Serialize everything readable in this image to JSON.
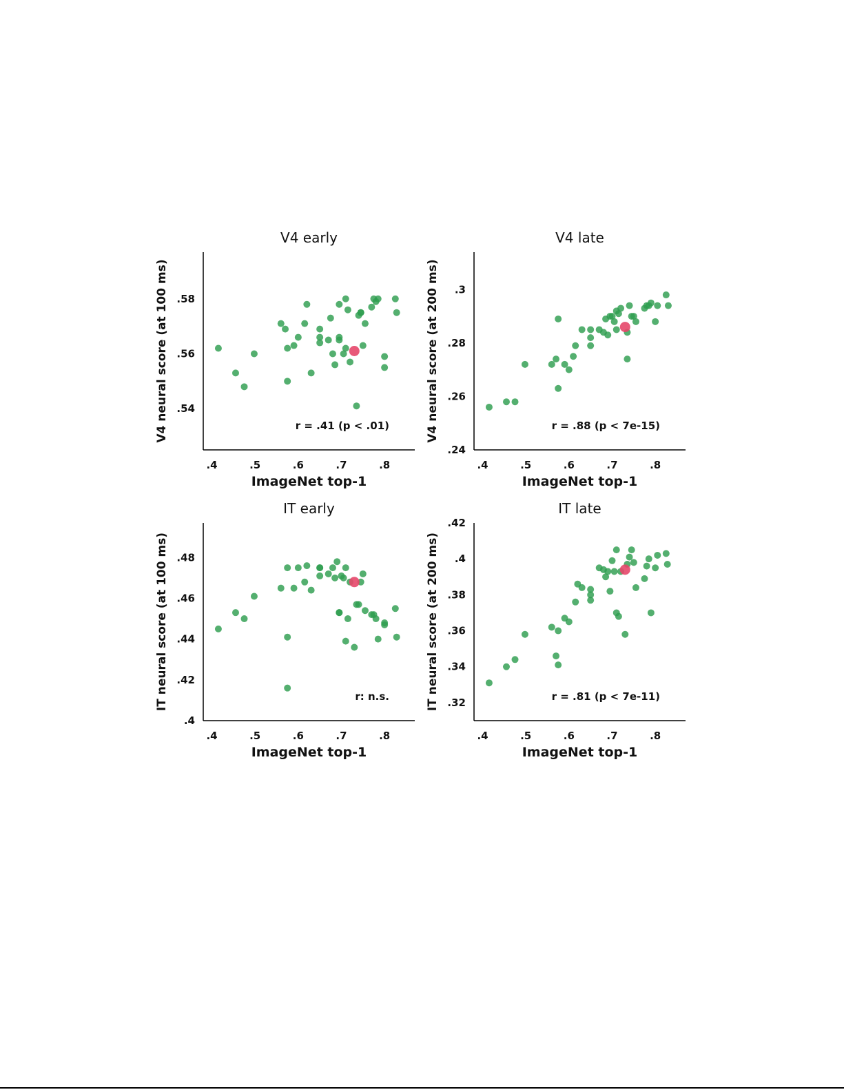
{
  "colors": {
    "green": "#2e9e4f",
    "highlight": "#e5476a"
  },
  "chart_data": [
    {
      "type": "scatter",
      "title": "V4 early",
      "xlabel": "ImageNet top-1",
      "ylabel": "V4 neural score (at 100 ms)",
      "xlim": [
        0.38,
        0.87
      ],
      "ylim": [
        0.525,
        0.597
      ],
      "xticks": [
        0.4,
        0.5,
        0.6,
        0.7,
        0.8
      ],
      "xtick_labels": [
        ".4",
        ".5",
        ".6",
        ".7",
        ".8"
      ],
      "yticks": [
        0.54,
        0.56,
        0.58
      ],
      "ytick_labels": [
        ".54",
        ".56",
        ".58"
      ],
      "annotation": "r = .41 (p < .01)",
      "grid": false,
      "points": [
        [
          0.415,
          0.562
        ],
        [
          0.455,
          0.553
        ],
        [
          0.475,
          0.548
        ],
        [
          0.498,
          0.56
        ],
        [
          0.56,
          0.571
        ],
        [
          0.57,
          0.569
        ],
        [
          0.575,
          0.562
        ],
        [
          0.575,
          0.55
        ],
        [
          0.59,
          0.563
        ],
        [
          0.6,
          0.566
        ],
        [
          0.615,
          0.571
        ],
        [
          0.62,
          0.578
        ],
        [
          0.63,
          0.553
        ],
        [
          0.65,
          0.569
        ],
        [
          0.65,
          0.566
        ],
        [
          0.65,
          0.564
        ],
        [
          0.67,
          0.565
        ],
        [
          0.675,
          0.573
        ],
        [
          0.68,
          0.56
        ],
        [
          0.685,
          0.556
        ],
        [
          0.695,
          0.578
        ],
        [
          0.695,
          0.566
        ],
        [
          0.695,
          0.565
        ],
        [
          0.705,
          0.56
        ],
        [
          0.71,
          0.562
        ],
        [
          0.71,
          0.58
        ],
        [
          0.715,
          0.576
        ],
        [
          0.72,
          0.557
        ],
        [
          0.735,
          0.541
        ],
        [
          0.74,
          0.574
        ],
        [
          0.745,
          0.575
        ],
        [
          0.745,
          0.575
        ],
        [
          0.75,
          0.563
        ],
        [
          0.755,
          0.571
        ],
        [
          0.77,
          0.577
        ],
        [
          0.775,
          0.58
        ],
        [
          0.78,
          0.579
        ],
        [
          0.785,
          0.58
        ],
        [
          0.8,
          0.559
        ],
        [
          0.8,
          0.555
        ],
        [
          0.825,
          0.58
        ],
        [
          0.828,
          0.575
        ]
      ],
      "highlight": [
        0.73,
        0.561
      ]
    },
    {
      "type": "scatter",
      "title": "V4 late",
      "xlabel": "ImageNet top-1",
      "ylabel": "V4 neural score (at 200 ms)",
      "xlim": [
        0.38,
        0.87
      ],
      "ylim": [
        0.24,
        0.314
      ],
      "xticks": [
        0.4,
        0.5,
        0.6,
        0.7,
        0.8
      ],
      "xtick_labels": [
        ".4",
        ".5",
        ".6",
        ".7",
        ".8"
      ],
      "yticks": [
        0.24,
        0.26,
        0.28,
        0.3
      ],
      "ytick_labels": [
        ".24",
        ".26",
        ".28",
        ".3"
      ],
      "annotation": "r = .88 (p < 7e-15)",
      "grid": false,
      "points": [
        [
          0.415,
          0.256
        ],
        [
          0.455,
          0.258
        ],
        [
          0.475,
          0.258
        ],
        [
          0.498,
          0.272
        ],
        [
          0.56,
          0.272
        ],
        [
          0.57,
          0.274
        ],
        [
          0.575,
          0.263
        ],
        [
          0.575,
          0.289
        ],
        [
          0.59,
          0.272
        ],
        [
          0.6,
          0.27
        ],
        [
          0.61,
          0.275
        ],
        [
          0.615,
          0.279
        ],
        [
          0.63,
          0.285
        ],
        [
          0.65,
          0.285
        ],
        [
          0.65,
          0.282
        ],
        [
          0.65,
          0.279
        ],
        [
          0.67,
          0.285
        ],
        [
          0.68,
          0.284
        ],
        [
          0.685,
          0.289
        ],
        [
          0.69,
          0.283
        ],
        [
          0.695,
          0.29
        ],
        [
          0.7,
          0.29
        ],
        [
          0.705,
          0.288
        ],
        [
          0.71,
          0.292
        ],
        [
          0.71,
          0.285
        ],
        [
          0.715,
          0.291
        ],
        [
          0.72,
          0.293
        ],
        [
          0.735,
          0.284
        ],
        [
          0.735,
          0.274
        ],
        [
          0.74,
          0.294
        ],
        [
          0.745,
          0.29
        ],
        [
          0.75,
          0.29
        ],
        [
          0.755,
          0.288
        ],
        [
          0.775,
          0.293
        ],
        [
          0.78,
          0.294
        ],
        [
          0.785,
          0.294
        ],
        [
          0.79,
          0.295
        ],
        [
          0.8,
          0.288
        ],
        [
          0.805,
          0.294
        ],
        [
          0.825,
          0.298
        ],
        [
          0.83,
          0.294
        ]
      ],
      "highlight": [
        0.73,
        0.286
      ]
    },
    {
      "type": "scatter",
      "title": "IT early",
      "xlabel": "ImageNet top-1",
      "ylabel": "IT neural score (at 100 ms)",
      "xlim": [
        0.38,
        0.87
      ],
      "ylim": [
        0.4,
        0.497
      ],
      "xticks": [
        0.4,
        0.5,
        0.6,
        0.7,
        0.8
      ],
      "xtick_labels": [
        ".4",
        ".5",
        ".6",
        ".7",
        ".8"
      ],
      "yticks": [
        0.4,
        0.42,
        0.44,
        0.46,
        0.48
      ],
      "ytick_labels": [
        ".4",
        ".42",
        ".44",
        ".46",
        ".48"
      ],
      "annotation": "r: n.s.",
      "grid": false,
      "points": [
        [
          0.415,
          0.445
        ],
        [
          0.455,
          0.453
        ],
        [
          0.475,
          0.45
        ],
        [
          0.498,
          0.461
        ],
        [
          0.56,
          0.465
        ],
        [
          0.575,
          0.475
        ],
        [
          0.575,
          0.441
        ],
        [
          0.575,
          0.416
        ],
        [
          0.59,
          0.465
        ],
        [
          0.6,
          0.475
        ],
        [
          0.615,
          0.468
        ],
        [
          0.62,
          0.476
        ],
        [
          0.63,
          0.464
        ],
        [
          0.65,
          0.475
        ],
        [
          0.65,
          0.475
        ],
        [
          0.65,
          0.471
        ],
        [
          0.67,
          0.472
        ],
        [
          0.68,
          0.475
        ],
        [
          0.685,
          0.47
        ],
        [
          0.69,
          0.478
        ],
        [
          0.695,
          0.453
        ],
        [
          0.695,
          0.453
        ],
        [
          0.7,
          0.471
        ],
        [
          0.705,
          0.47
        ],
        [
          0.71,
          0.475
        ],
        [
          0.71,
          0.439
        ],
        [
          0.715,
          0.45
        ],
        [
          0.72,
          0.468
        ],
        [
          0.73,
          0.436
        ],
        [
          0.735,
          0.457
        ],
        [
          0.74,
          0.457
        ],
        [
          0.745,
          0.468
        ],
        [
          0.75,
          0.472
        ],
        [
          0.755,
          0.454
        ],
        [
          0.77,
          0.452
        ],
        [
          0.775,
          0.452
        ],
        [
          0.78,
          0.45
        ],
        [
          0.785,
          0.44
        ],
        [
          0.8,
          0.448
        ],
        [
          0.8,
          0.447
        ],
        [
          0.825,
          0.455
        ],
        [
          0.828,
          0.441
        ]
      ],
      "highlight": [
        0.73,
        0.468
      ]
    },
    {
      "type": "scatter",
      "title": "IT late",
      "xlabel": "ImageNet top-1",
      "ylabel": "IT neural score (at 200 ms)",
      "xlim": [
        0.38,
        0.87
      ],
      "ylim": [
        0.31,
        0.42
      ],
      "xticks": [
        0.4,
        0.5,
        0.6,
        0.7,
        0.8
      ],
      "xtick_labels": [
        ".4",
        ".5",
        ".6",
        ".7",
        ".8"
      ],
      "yticks": [
        0.32,
        0.34,
        0.36,
        0.38,
        0.4,
        0.42
      ],
      "ytick_labels": [
        ".32",
        ".34",
        ".36",
        ".38",
        ".4",
        ".42"
      ],
      "annotation": "r = .81 (p < 7e-11)",
      "grid": false,
      "points": [
        [
          0.415,
          0.331
        ],
        [
          0.455,
          0.34
        ],
        [
          0.475,
          0.344
        ],
        [
          0.498,
          0.358
        ],
        [
          0.56,
          0.362
        ],
        [
          0.57,
          0.346
        ],
        [
          0.575,
          0.341
        ],
        [
          0.575,
          0.36
        ],
        [
          0.59,
          0.367
        ],
        [
          0.6,
          0.365
        ],
        [
          0.615,
          0.376
        ],
        [
          0.62,
          0.386
        ],
        [
          0.63,
          0.384
        ],
        [
          0.65,
          0.383
        ],
        [
          0.65,
          0.38
        ],
        [
          0.65,
          0.377
        ],
        [
          0.67,
          0.395
        ],
        [
          0.68,
          0.394
        ],
        [
          0.685,
          0.39
        ],
        [
          0.69,
          0.393
        ],
        [
          0.695,
          0.382
        ],
        [
          0.7,
          0.399
        ],
        [
          0.705,
          0.393
        ],
        [
          0.71,
          0.405
        ],
        [
          0.71,
          0.37
        ],
        [
          0.715,
          0.368
        ],
        [
          0.72,
          0.393
        ],
        [
          0.73,
          0.358
        ],
        [
          0.735,
          0.397
        ],
        [
          0.74,
          0.401
        ],
        [
          0.745,
          0.405
        ],
        [
          0.75,
          0.398
        ],
        [
          0.755,
          0.384
        ],
        [
          0.775,
          0.389
        ],
        [
          0.78,
          0.396
        ],
        [
          0.785,
          0.4
        ],
        [
          0.79,
          0.37
        ],
        [
          0.8,
          0.395
        ],
        [
          0.805,
          0.402
        ],
        [
          0.825,
          0.403
        ],
        [
          0.828,
          0.397
        ]
      ],
      "highlight": [
        0.73,
        0.394
      ]
    }
  ]
}
